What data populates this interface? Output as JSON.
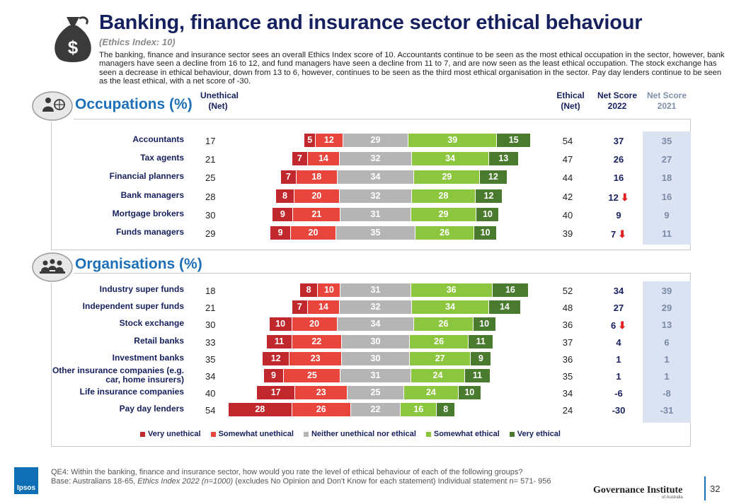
{
  "title": "Banking, finance and insurance sector ethical behaviour",
  "subtitle": "(Ethics Index: 10)",
  "intro": "The banking, finance and insurance sector sees an overall Ethics Index score of 10. Accountants continue to be seen as the most ethical occupation in the sector, however, bank managers have seen a decline from 16 to 12, and fund managers have seen a decline from 11 to 7, and are now seen as the least ethical occupation. The stock exchange has seen a decrease in ethical behaviour, down from 13 to 6, however, continues to be seen as the third most ethical organisation in the sector. Pay day lenders continue to be seen as the least ethical, with a net score of -30.",
  "headers": {
    "unethical_1": "Unethical",
    "unethical_2": "(Net)",
    "ethical_1": "Ethical",
    "ethical_2": "(Net)",
    "net2022_1": "Net Score",
    "net2022_2": "2022",
    "net2021_1": "Net Score",
    "net2021_2": "2021"
  },
  "chart_data": [
    {
      "type": "bar",
      "stacked": "diverging",
      "title": "Occupations (%)",
      "categories": [
        "Accountants",
        "Tax agents",
        "Financial planners",
        "Bank managers",
        "Mortgage brokers",
        "Funds managers"
      ],
      "series": [
        {
          "name": "Very unethical",
          "values": [
            5,
            7,
            7,
            8,
            9,
            9
          ]
        },
        {
          "name": "Somewhat unethical",
          "values": [
            12,
            14,
            18,
            20,
            21,
            20
          ]
        },
        {
          "name": "Neither unethical nor ethical",
          "values": [
            29,
            32,
            34,
            32,
            31,
            35
          ]
        },
        {
          "name": "Somewhat ethical",
          "values": [
            39,
            34,
            29,
            28,
            29,
            26
          ]
        },
        {
          "name": "Very ethical",
          "values": [
            15,
            13,
            12,
            12,
            10,
            10
          ]
        }
      ],
      "unethical_net": [
        17,
        21,
        25,
        28,
        30,
        29
      ],
      "ethical_net": [
        54,
        47,
        44,
        42,
        40,
        39
      ],
      "net_score_2022": [
        37,
        26,
        16,
        12,
        9,
        7
      ],
      "net_score_2021": [
        35,
        27,
        18,
        16,
        9,
        11
      ],
      "decline_flag": [
        false,
        false,
        false,
        true,
        false,
        true
      ]
    },
    {
      "type": "bar",
      "stacked": "diverging",
      "title": "Organisations (%)",
      "categories": [
        "Industry super funds",
        "Independent super funds",
        "Stock exchange",
        "Retail banks",
        "Investment banks",
        "Other insurance companies (e.g. car, home insurers)",
        "Life insurance companies",
        "Pay day lenders"
      ],
      "series": [
        {
          "name": "Very unethical",
          "values": [
            8,
            7,
            10,
            11,
            12,
            9,
            17,
            28
          ]
        },
        {
          "name": "Somewhat unethical",
          "values": [
            10,
            14,
            20,
            22,
            23,
            25,
            23,
            26
          ]
        },
        {
          "name": "Neither unethical nor ethical",
          "values": [
            31,
            32,
            34,
            30,
            30,
            31,
            25,
            22
          ]
        },
        {
          "name": "Somewhat ethical",
          "values": [
            36,
            34,
            26,
            26,
            27,
            24,
            24,
            16
          ]
        },
        {
          "name": "Very ethical",
          "values": [
            16,
            14,
            10,
            11,
            9,
            11,
            10,
            8
          ]
        }
      ],
      "unethical_net": [
        18,
        21,
        30,
        33,
        35,
        34,
        40,
        54
      ],
      "ethical_net": [
        52,
        48,
        36,
        37,
        36,
        35,
        34,
        24
      ],
      "net_score_2022": [
        34,
        27,
        6,
        4,
        1,
        1,
        -6,
        -30
      ],
      "net_score_2021": [
        39,
        29,
        13,
        6,
        1,
        1,
        -8,
        -31
      ],
      "decline_flag": [
        false,
        false,
        true,
        false,
        false,
        false,
        false,
        false
      ]
    }
  ],
  "legend": [
    "Very unethical",
    "Somewhat unethical",
    "Neither unethical nor ethical",
    "Somewhat ethical",
    "Very ethical"
  ],
  "colors": {
    "very_unethical": "#c0282d",
    "somewhat_unethical": "#e8453c",
    "neither": "#b5b5b5",
    "somewhat_ethical": "#8cc63f",
    "very_ethical": "#4a7a2e",
    "title": "#16205e",
    "accent": "#1d6fb8"
  },
  "footer": {
    "question": "QE4: Within the banking, finance and insurance sector, how would you rate the level of ethical behaviour of each of the following groups?",
    "base_prefix": "Base: Australians 18-65, ",
    "base_italic": "Ethics Index 2022 (n=1000)",
    "base_suffix": " (excludes No Opinion and Don't Know for each statement) Individual statement n= 571- 956"
  },
  "brand": {
    "ipsos": "Ipsos",
    "gov": "Governance Institute",
    "gov_sub": "of Australia",
    "page": "32"
  }
}
